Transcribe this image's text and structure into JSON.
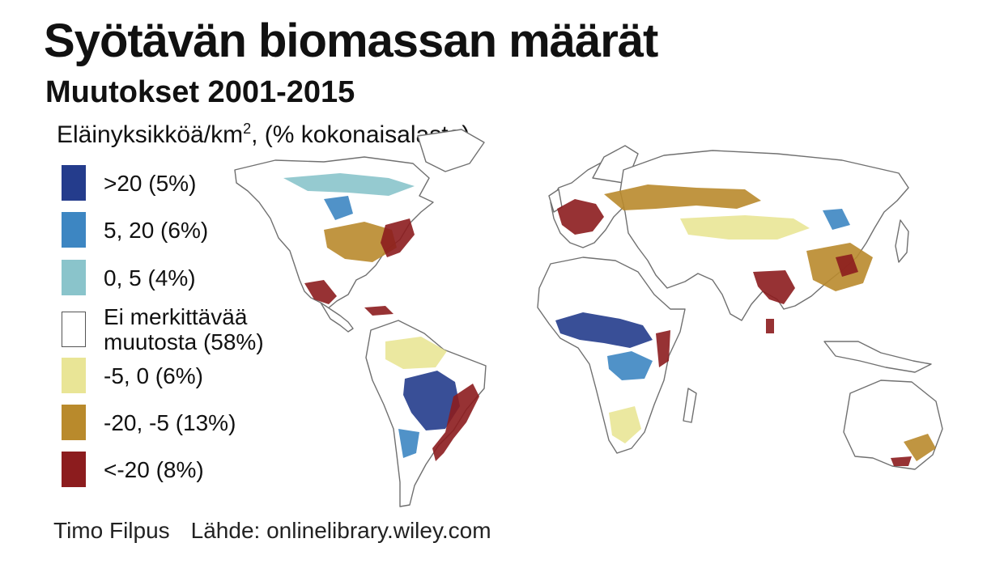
{
  "title": "Syötävän biomassan määrät",
  "subtitle": "Muutokset 2001-2015",
  "unit": {
    "base": "Eläinyksikköä/km",
    "superscript": "2",
    "suffix": ", (% kokonaisalasta)"
  },
  "legend": [
    {
      "label": ">20 (5%)",
      "color": "#243c8c"
    },
    {
      "label": "5, 20 (6%)",
      "color": "#3d86c2"
    },
    {
      "label": "0, 5 (4%)",
      "color": "#8ac4cb"
    },
    {
      "label_line1": "Ei merkittävää",
      "label_line2": "muutosta (58%)",
      "color": "#ffffff"
    },
    {
      "label": "-5, 0 (6%)",
      "color": "#e9e596"
    },
    {
      "label": "-20, -5 (13%)",
      "color": "#b98a2c"
    },
    {
      "label": "<-20 (8%)",
      "color": "#8c1c1e"
    }
  ],
  "map": {
    "type": "choropleth world map",
    "land_fill": "#ffffff",
    "border_color": "#707070"
  },
  "footer": {
    "author": "Timo Filpus",
    "source": "Lähde: onlinelibrary.wiley.com"
  }
}
